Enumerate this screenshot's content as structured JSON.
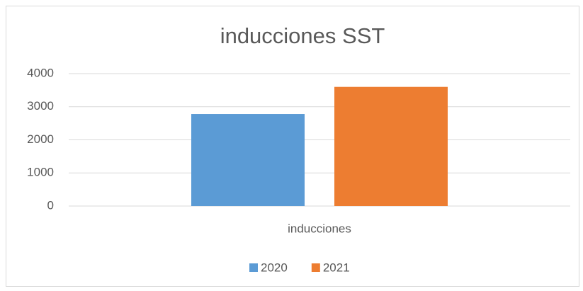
{
  "chart_data": {
    "type": "bar",
    "title": "inducciones SST",
    "categories": [
      "inducciones"
    ],
    "series": [
      {
        "name": "2020",
        "color": "#5b9bd5",
        "values": [
          2780
        ]
      },
      {
        "name": "2021",
        "color": "#ed7d31",
        "values": [
          3600
        ]
      }
    ],
    "ylim": [
      0,
      4000
    ],
    "yticks": [
      0,
      1000,
      2000,
      3000,
      4000
    ],
    "grid": true,
    "legend": "bottom"
  }
}
